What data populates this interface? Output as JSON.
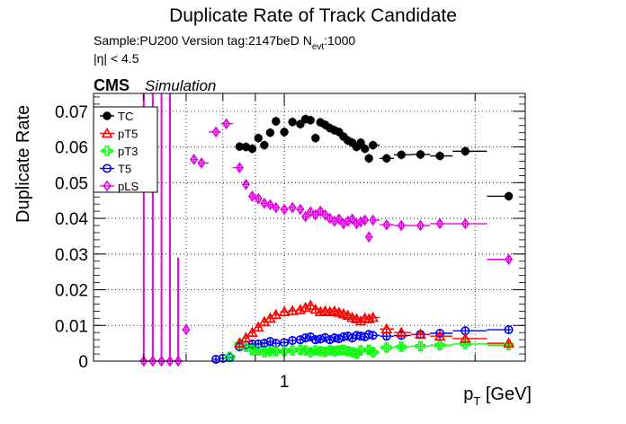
{
  "chart_data": {
    "type": "scatter",
    "title": "Duplicate Rate of Track Candidate",
    "subtitle_sample": "Sample:PU200   Version tag:2147beD  N",
    "subtitle_nevt_sub": "evt",
    "subtitle_nevt_val": ":1000",
    "subtitle_eta": "|η| < 4.5",
    "cms_label": "CMS",
    "sim_label": "Simulation",
    "ylabel": "Duplicate Rate",
    "xlabel_p": "p",
    "xlabel_sub": "T",
    "xlabel_unit": " [GeV]",
    "x_scale": "log",
    "xlim": [
      0.5,
      2.4
    ],
    "ylim": [
      0,
      0.075
    ],
    "grid": true,
    "legend_position": "top-left",
    "x_tick_labels": [
      {
        "value": 1,
        "label": "1"
      }
    ],
    "y_ticks": [
      {
        "value": 0,
        "label": "0"
      },
      {
        "value": 0.01,
        "label": "0.01"
      },
      {
        "value": 0.02,
        "label": "0.02"
      },
      {
        "value": 0.03,
        "label": "0.03"
      },
      {
        "value": 0.04,
        "label": "0.04"
      },
      {
        "value": 0.05,
        "label": "0.05"
      },
      {
        "value": 0.06,
        "label": "0.06"
      },
      {
        "value": 0.07,
        "label": "0.07"
      }
    ],
    "series": [
      {
        "name": "TC",
        "color": "#000000",
        "marker": "filled-circle",
        "points": [
          {
            "x": 0.85,
            "y": 0.0601
          },
          {
            "x": 0.87,
            "y": 0.06
          },
          {
            "x": 0.89,
            "y": 0.0595
          },
          {
            "x": 0.91,
            "y": 0.0625
          },
          {
            "x": 0.93,
            "y": 0.0605
          },
          {
            "x": 0.95,
            "y": 0.064
          },
          {
            "x": 0.97,
            "y": 0.0672
          },
          {
            "x": 1.0,
            "y": 0.0642
          },
          {
            "x": 1.03,
            "y": 0.067
          },
          {
            "x": 1.06,
            "y": 0.0664
          },
          {
            "x": 1.08,
            "y": 0.0678
          },
          {
            "x": 1.1,
            "y": 0.0675
          },
          {
            "x": 1.12,
            "y": 0.0625
          },
          {
            "x": 1.14,
            "y": 0.0669
          },
          {
            "x": 1.16,
            "y": 0.0662
          },
          {
            "x": 1.18,
            "y": 0.0653
          },
          {
            "x": 1.2,
            "y": 0.0647
          },
          {
            "x": 1.22,
            "y": 0.0642
          },
          {
            "x": 1.24,
            "y": 0.0629
          },
          {
            "x": 1.26,
            "y": 0.0618
          },
          {
            "x": 1.28,
            "y": 0.0612
          },
          {
            "x": 1.3,
            "y": 0.06
          },
          {
            "x": 1.32,
            "y": 0.0612
          },
          {
            "x": 1.34,
            "y": 0.0595
          },
          {
            "x": 1.36,
            "y": 0.0568
          },
          {
            "x": 1.38,
            "y": 0.0605
          },
          {
            "x": 1.45,
            "y": 0.0568
          },
          {
            "x": 1.53,
            "y": 0.0578
          },
          {
            "x": 1.64,
            "y": 0.0579
          },
          {
            "x": 1.76,
            "y": 0.0575
          },
          {
            "x": 1.93,
            "y": 0.0588
          },
          {
            "x": 2.26,
            "y": 0.0462
          }
        ]
      },
      {
        "name": "pT5",
        "color": "#ff0000",
        "marker": "open-triangle",
        "points": [
          {
            "x": 0.85,
            "y": 0.005
          },
          {
            "x": 0.87,
            "y": 0.0065
          },
          {
            "x": 0.89,
            "y": 0.008
          },
          {
            "x": 0.91,
            "y": 0.0095
          },
          {
            "x": 0.93,
            "y": 0.011
          },
          {
            "x": 0.95,
            "y": 0.012
          },
          {
            "x": 0.97,
            "y": 0.013
          },
          {
            "x": 1.0,
            "y": 0.0138
          },
          {
            "x": 1.03,
            "y": 0.0141
          },
          {
            "x": 1.06,
            "y": 0.0144
          },
          {
            "x": 1.08,
            "y": 0.015
          },
          {
            "x": 1.1,
            "y": 0.0156
          },
          {
            "x": 1.12,
            "y": 0.0145
          },
          {
            "x": 1.14,
            "y": 0.0138
          },
          {
            "x": 1.16,
            "y": 0.014
          },
          {
            "x": 1.18,
            "y": 0.0138
          },
          {
            "x": 1.2,
            "y": 0.014
          },
          {
            "x": 1.22,
            "y": 0.0136
          },
          {
            "x": 1.24,
            "y": 0.0132
          },
          {
            "x": 1.26,
            "y": 0.0128
          },
          {
            "x": 1.28,
            "y": 0.0122
          },
          {
            "x": 1.3,
            "y": 0.0118
          },
          {
            "x": 1.32,
            "y": 0.0112
          },
          {
            "x": 1.34,
            "y": 0.012
          },
          {
            "x": 1.36,
            "y": 0.0118
          },
          {
            "x": 1.38,
            "y": 0.0122
          },
          {
            "x": 1.45,
            "y": 0.009
          },
          {
            "x": 1.53,
            "y": 0.008
          },
          {
            "x": 1.64,
            "y": 0.0075
          },
          {
            "x": 1.76,
            "y": 0.007
          },
          {
            "x": 1.93,
            "y": 0.0063
          },
          {
            "x": 2.26,
            "y": 0.005
          }
        ]
      },
      {
        "name": "pT3",
        "color": "#00ff00",
        "marker": "open-cross",
        "points": [
          {
            "x": 0.82,
            "y": 0.0012
          },
          {
            "x": 0.85,
            "y": 0.0048
          },
          {
            "x": 0.87,
            "y": 0.004
          },
          {
            "x": 0.89,
            "y": 0.0032
          },
          {
            "x": 0.91,
            "y": 0.003
          },
          {
            "x": 0.93,
            "y": 0.0025
          },
          {
            "x": 0.95,
            "y": 0.0028
          },
          {
            "x": 0.97,
            "y": 0.0028
          },
          {
            "x": 1.0,
            "y": 0.0028
          },
          {
            "x": 1.03,
            "y": 0.003
          },
          {
            "x": 1.06,
            "y": 0.0032
          },
          {
            "x": 1.08,
            "y": 0.003
          },
          {
            "x": 1.1,
            "y": 0.0025
          },
          {
            "x": 1.12,
            "y": 0.003
          },
          {
            "x": 1.14,
            "y": 0.0028
          },
          {
            "x": 1.16,
            "y": 0.0026
          },
          {
            "x": 1.18,
            "y": 0.003
          },
          {
            "x": 1.2,
            "y": 0.0028
          },
          {
            "x": 1.22,
            "y": 0.003
          },
          {
            "x": 1.24,
            "y": 0.0032
          },
          {
            "x": 1.26,
            "y": 0.0028
          },
          {
            "x": 1.28,
            "y": 0.0025
          },
          {
            "x": 1.3,
            "y": 0.0022
          },
          {
            "x": 1.32,
            "y": 0.003
          },
          {
            "x": 1.36,
            "y": 0.0032
          },
          {
            "x": 1.38,
            "y": 0.0025
          },
          {
            "x": 1.45,
            "y": 0.0038
          },
          {
            "x": 1.53,
            "y": 0.004
          },
          {
            "x": 1.64,
            "y": 0.0042
          },
          {
            "x": 1.76,
            "y": 0.0045
          },
          {
            "x": 1.93,
            "y": 0.0048
          },
          {
            "x": 2.26,
            "y": 0.0045
          }
        ]
      },
      {
        "name": "T5",
        "color": "#0000ff",
        "marker": "open-circle",
        "points": [
          {
            "x": 0.78,
            "y": 0.0005
          },
          {
            "x": 0.8,
            "y": 0.0008
          },
          {
            "x": 0.82,
            "y": 0.001
          },
          {
            "x": 0.85,
            "y": 0.004
          },
          {
            "x": 0.87,
            "y": 0.0045
          },
          {
            "x": 0.89,
            "y": 0.0048
          },
          {
            "x": 0.91,
            "y": 0.0048
          },
          {
            "x": 0.93,
            "y": 0.005
          },
          {
            "x": 0.95,
            "y": 0.0055
          },
          {
            "x": 0.97,
            "y": 0.005
          },
          {
            "x": 1.0,
            "y": 0.0052
          },
          {
            "x": 1.03,
            "y": 0.0058
          },
          {
            "x": 1.06,
            "y": 0.006
          },
          {
            "x": 1.08,
            "y": 0.0065
          },
          {
            "x": 1.1,
            "y": 0.0068
          },
          {
            "x": 1.12,
            "y": 0.006
          },
          {
            "x": 1.14,
            "y": 0.0062
          },
          {
            "x": 1.16,
            "y": 0.0066
          },
          {
            "x": 1.18,
            "y": 0.006
          },
          {
            "x": 1.2,
            "y": 0.0065
          },
          {
            "x": 1.22,
            "y": 0.0063
          },
          {
            "x": 1.24,
            "y": 0.0068
          },
          {
            "x": 1.26,
            "y": 0.007
          },
          {
            "x": 1.28,
            "y": 0.0065
          },
          {
            "x": 1.3,
            "y": 0.0072
          },
          {
            "x": 1.32,
            "y": 0.007
          },
          {
            "x": 1.34,
            "y": 0.0068
          },
          {
            "x": 1.36,
            "y": 0.0075
          },
          {
            "x": 1.38,
            "y": 0.0072
          },
          {
            "x": 1.45,
            "y": 0.007
          },
          {
            "x": 1.53,
            "y": 0.0072
          },
          {
            "x": 1.64,
            "y": 0.0075
          },
          {
            "x": 1.76,
            "y": 0.0078
          },
          {
            "x": 1.93,
            "y": 0.0085
          },
          {
            "x": 2.26,
            "y": 0.0088
          }
        ]
      },
      {
        "name": "pLS",
        "color": "#e600e6",
        "marker": "open-diamond",
        "points": [
          {
            "x": 0.6,
            "y": 0.0
          },
          {
            "x": 0.62,
            "y": 0.0
          },
          {
            "x": 0.64,
            "y": 0.0
          },
          {
            "x": 0.66,
            "y": 0.0
          },
          {
            "x": 0.68,
            "y": 0.0
          },
          {
            "x": 0.7,
            "y": 0.0088
          },
          {
            "x": 0.72,
            "y": 0.0565
          },
          {
            "x": 0.74,
            "y": 0.0555
          },
          {
            "x": 0.78,
            "y": 0.0642
          },
          {
            "x": 0.81,
            "y": 0.0665
          },
          {
            "x": 0.85,
            "y": 0.0542
          },
          {
            "x": 0.87,
            "y": 0.0495
          },
          {
            "x": 0.89,
            "y": 0.0462
          },
          {
            "x": 0.91,
            "y": 0.0455
          },
          {
            "x": 0.93,
            "y": 0.0442
          },
          {
            "x": 0.95,
            "y": 0.0438
          },
          {
            "x": 0.97,
            "y": 0.043
          },
          {
            "x": 1.0,
            "y": 0.0425
          },
          {
            "x": 1.03,
            "y": 0.043
          },
          {
            "x": 1.06,
            "y": 0.0425
          },
          {
            "x": 1.08,
            "y": 0.0405
          },
          {
            "x": 1.1,
            "y": 0.0418
          },
          {
            "x": 1.12,
            "y": 0.041
          },
          {
            "x": 1.14,
            "y": 0.042
          },
          {
            "x": 1.16,
            "y": 0.041
          },
          {
            "x": 1.18,
            "y": 0.04
          },
          {
            "x": 1.2,
            "y": 0.0392
          },
          {
            "x": 1.22,
            "y": 0.0398
          },
          {
            "x": 1.24,
            "y": 0.0385
          },
          {
            "x": 1.26,
            "y": 0.0392
          },
          {
            "x": 1.28,
            "y": 0.0398
          },
          {
            "x": 1.3,
            "y": 0.0385
          },
          {
            "x": 1.32,
            "y": 0.039
          },
          {
            "x": 1.34,
            "y": 0.0395
          },
          {
            "x": 1.36,
            "y": 0.0348
          },
          {
            "x": 1.38,
            "y": 0.0395
          },
          {
            "x": 1.45,
            "y": 0.0382
          },
          {
            "x": 1.53,
            "y": 0.038
          },
          {
            "x": 1.64,
            "y": 0.038
          },
          {
            "x": 1.76,
            "y": 0.0385
          },
          {
            "x": 1.93,
            "y": 0.0385
          },
          {
            "x": 2.26,
            "y": 0.0285
          }
        ]
      }
    ]
  }
}
